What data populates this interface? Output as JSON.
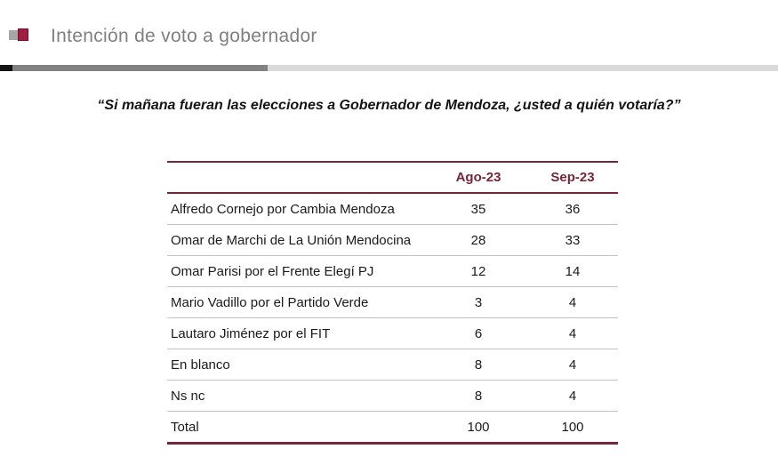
{
  "theme": {
    "accent_maroon": "#742738",
    "icon_red": "#a01c42",
    "icon_gray": "#a6a6a6",
    "title_gray": "#7f7f7f",
    "divider_black": "#141414",
    "divider_gray": "#828282",
    "divider_light": "#d9d9d9",
    "row_separator": "#c3c3c3"
  },
  "chart_data": {
    "type": "table",
    "title": "Intención de voto a gobernador",
    "question": "“Si mañana fueran las elecciones a Gobernador de Mendoza, ¿usted a quién votaría?”",
    "columns": [
      "",
      "Ago-23",
      "Sep-23"
    ],
    "rows": [
      {
        "label": "Alfredo Cornejo por Cambia Mendoza",
        "values": [
          35,
          36
        ]
      },
      {
        "label": "Omar de Marchi de La Unión Mendocina",
        "values": [
          28,
          33
        ]
      },
      {
        "label": "Omar Parisi por el Frente Elegí PJ",
        "values": [
          12,
          14
        ]
      },
      {
        "label": "Mario Vadillo por el Partido Verde",
        "values": [
          3,
          4
        ]
      },
      {
        "label": "Lautaro Jiménez por el FIT",
        "values": [
          6,
          4
        ]
      },
      {
        "label": "En blanco",
        "values": [
          8,
          4
        ]
      },
      {
        "label": "Ns nc",
        "values": [
          8,
          4
        ]
      },
      {
        "label": "Total",
        "values": [
          100,
          100
        ]
      }
    ]
  }
}
